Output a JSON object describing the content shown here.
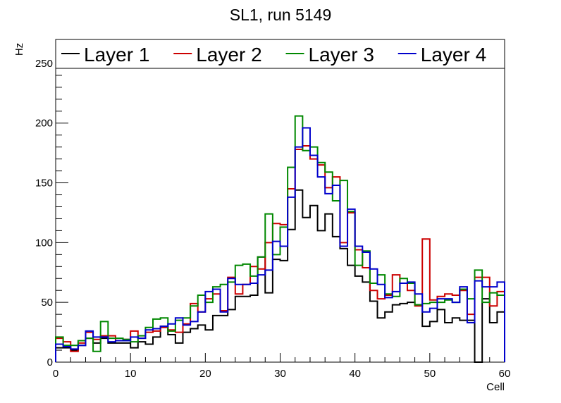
{
  "chart_data": {
    "type": "step",
    "title": "SL1, run 5149",
    "xlabel": "Cell",
    "ylabel": "Hz",
    "xlim": [
      0,
      60
    ],
    "ylim": [
      0,
      270
    ],
    "x_ticks": [
      0,
      10,
      20,
      30,
      40,
      50,
      60
    ],
    "y_ticks": [
      0,
      50,
      100,
      150,
      200,
      250
    ],
    "grid": false,
    "legend_position": "top",
    "series": [
      {
        "name": "Layer 1",
        "color": "#000000",
        "values": [
          12,
          12,
          10,
          14,
          20,
          16,
          20,
          16,
          16,
          16,
          12,
          17,
          15,
          21,
          30,
          23,
          16,
          25,
          28,
          31,
          27,
          39,
          39,
          44,
          55,
          55,
          56,
          88,
          58,
          86,
          85,
          111,
          144,
          121,
          131,
          110,
          124,
          105,
          95,
          81,
          72,
          67,
          51,
          37,
          42,
          48,
          49,
          50,
          48,
          30,
          34,
          44,
          33,
          37,
          35,
          35,
          0,
          53,
          33,
          42
        ]
      },
      {
        "name": "Layer 2",
        "color": "#cc0000",
        "values": [
          20,
          17,
          9,
          16,
          25,
          19,
          22,
          22,
          18,
          19,
          26,
          20,
          25,
          26,
          29,
          27,
          25,
          32,
          49,
          42,
          53,
          57,
          43,
          71,
          57,
          65,
          80,
          78,
          100,
          116,
          115,
          145,
          178,
          181,
          170,
          165,
          146,
          155,
          100,
          125,
          94,
          79,
          60,
          53,
          56,
          73,
          66,
          60,
          47,
          103,
          52,
          55,
          57,
          56,
          60,
          40,
          71,
          71,
          47,
          59
        ]
      },
      {
        "name": "Layer 3",
        "color": "#008800",
        "values": [
          21,
          14,
          14,
          18,
          20,
          9,
          34,
          20,
          20,
          19,
          17,
          22,
          29,
          36,
          37,
          26,
          35,
          37,
          47,
          56,
          50,
          63,
          65,
          67,
          81,
          82,
          72,
          88,
          124,
          90,
          113,
          163,
          206,
          177,
          180,
          167,
          159,
          135,
          152,
          126,
          81,
          93,
          66,
          73,
          57,
          55,
          70,
          66,
          48,
          49,
          50,
          50,
          52,
          50,
          61,
          53,
          77,
          50,
          58,
          56
        ]
      },
      {
        "name": "Layer 4",
        "color": "#0000cc",
        "values": [
          15,
          13,
          11,
          14,
          26,
          21,
          21,
          17,
          18,
          18,
          21,
          20,
          27,
          28,
          30,
          32,
          37,
          31,
          34,
          42,
          59,
          61,
          42,
          70,
          65,
          65,
          66,
          73,
          77,
          101,
          97,
          138,
          180,
          196,
          173,
          155,
          141,
          148,
          97,
          128,
          97,
          92,
          78,
          65,
          54,
          59,
          66,
          67,
          57,
          42,
          45,
          53,
          53,
          50,
          63,
          33,
          68,
          63,
          63,
          67
        ]
      }
    ]
  }
}
